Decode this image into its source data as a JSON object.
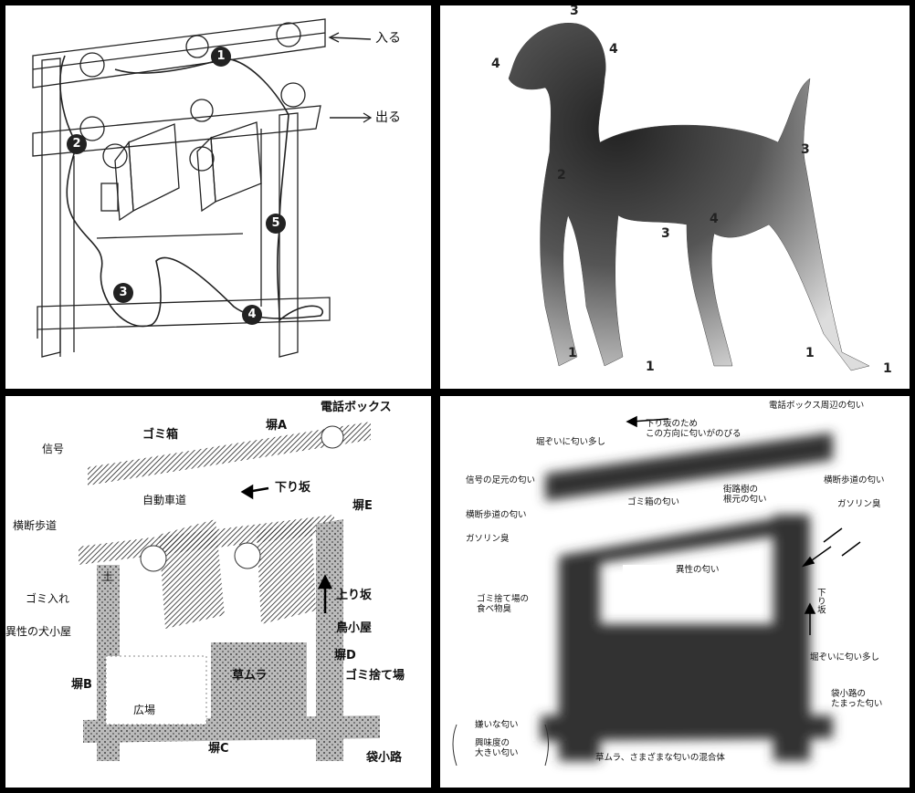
{
  "panel1": {
    "labels": {
      "in": "入る",
      "out": "出る"
    },
    "steps": [
      "1",
      "2",
      "3",
      "4",
      "5"
    ]
  },
  "panel2": {
    "numbers": {
      "head_top": "3",
      "head_ear": "4",
      "nose": "4",
      "chest": "2",
      "elbow": "3",
      "belly": "4",
      "tail": "3",
      "fl1": "1",
      "fl2": "1",
      "hl1": "1",
      "hl2": "1"
    }
  },
  "panel3": {
    "labels": {
      "phone_box": "電話ボックス",
      "wall_a": "塀A",
      "trash": "ゴミ箱",
      "signal": "信号",
      "downhill": "下り坂",
      "road": "自動車道",
      "wall_e": "塀E",
      "crosswalk": "横断歩道",
      "soil": "土",
      "trash_bin": "ゴミ入れ",
      "kennel": "異性の犬小屋",
      "uphill": "上り坂",
      "birdhouse": "鳥小屋",
      "wall_d": "塀D",
      "grass": "草ムラ",
      "dump": "ゴミ捨て場",
      "wall_b": "塀B",
      "square": "広場",
      "wall_c": "塀C",
      "dead_end": "袋小路"
    }
  },
  "panel4": {
    "labels": {
      "downhill_note": "下り坂のため\nこの方向に匂いがのびる",
      "phone_smell": "電話ボックス周辺の匂い",
      "wall_smell_top": "堀ぞいに匂い多し",
      "signal_smell": "信号の足元の匂い",
      "trash_smell": "ゴミ箱の匂い",
      "tree_smell": "街路樹の\n根元の匂い",
      "crosswalk_smell_r": "横断歩道の匂い",
      "gas_r": "ガソリン臭",
      "crosswalk_smell_l": "横断歩道の匂い",
      "gas_l": "ガソリン臭",
      "opposite_sex": "異性の匂い",
      "dump_food": "ゴミ捨て場の\n食べ物臭",
      "downhill_v": "下り坂",
      "wall_smell_right": "堀ぞいに匂い多し",
      "dead_end_smell": "袋小路の\nたまった匂い",
      "mixed": "草ムラ、さまざまな匂いの混合体"
    },
    "legend": {
      "dislike": "嫌いな匂い",
      "interest": "興味度の\n大きい匂い"
    }
  }
}
